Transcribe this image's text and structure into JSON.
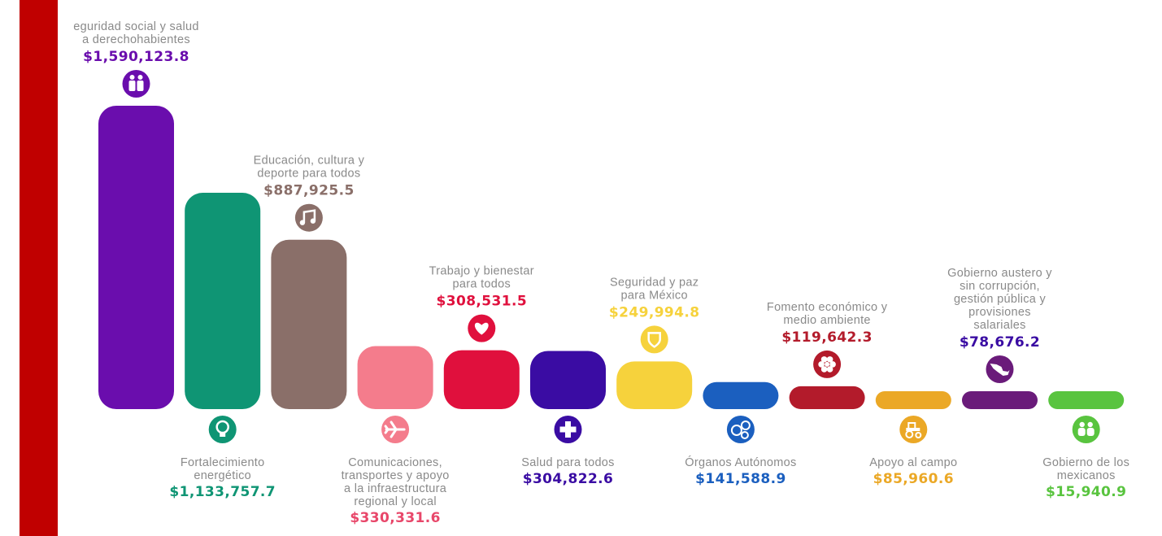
{
  "chart_data": {
    "type": "bar",
    "categories": [
      "Seguridad social y salud a derechohabientes",
      "Fortalecimiento energético",
      "Educación, cultura y deporte para todos",
      "Comunicaciones, transportes y apoyo a la infraestructura regional y local",
      "Trabajo y bienestar para todos",
      "Salud para todos",
      "Seguridad y paz para México",
      "Órganos Autónomos",
      "Fomento económico y medio ambiente",
      "Apoyo al campo",
      "Gobierno austero y sin corrupción, gestión pública y provisiones salariales",
      "Gobierno de los mexicanos"
    ],
    "values": [
      1590123.8,
      1133757.7,
      887925.5,
      330331.6,
      308531.5,
      304822.6,
      249994.8,
      141588.9,
      119642.3,
      85960.6,
      78676.2,
      15940.9
    ],
    "ylim": [
      0,
      1590123.8
    ],
    "grid": false,
    "title": "",
    "xlabel": "",
    "ylabel": ""
  },
  "bars": [
    {
      "label_lines": [
        "eguridad social y salud",
        "a derechohabientes"
      ],
      "value_text": "$1,590,123.8",
      "color": "#6a0dad",
      "icon": "people-icon",
      "position": "top"
    },
    {
      "label_lines": [
        "Fortalecimiento",
        "energético"
      ],
      "value_text": "$1,133,757.7",
      "color": "#0f9574",
      "icon": "lightbulb-icon",
      "position": "bottom"
    },
    {
      "label_lines": [
        "Educación, cultura y",
        "deporte para todos"
      ],
      "value_text": "$887,925.5",
      "color": "#8a6f69",
      "icon": "music-note-icon",
      "position": "top"
    },
    {
      "label_lines": [
        "Comunicaciones,",
        "transportes y apoyo",
        "a la infraestructura",
        "regional y local"
      ],
      "value_text": "$330,331.6",
      "color": "#f47c8c",
      "icon": "airplane-icon",
      "position": "bottom"
    },
    {
      "label_lines": [
        "Trabajo y bienestar",
        "para todos"
      ],
      "value_text": "$308,531.5",
      "color": "#e0103d",
      "icon": "heart-icon",
      "position": "top"
    },
    {
      "label_lines": [
        "Salud para todos"
      ],
      "value_text": "$304,822.6",
      "color": "#3a0ca3",
      "icon": "plus-icon",
      "position": "bottom"
    },
    {
      "label_lines": [
        "Seguridad y paz",
        "para México"
      ],
      "value_text": "$249,994.8",
      "color": "#f6d23c",
      "icon": "shield-icon",
      "position": "top"
    },
    {
      "label_lines": [
        "Órganos Autónomos"
      ],
      "value_text": "$141,588.9",
      "color": "#1b5fbf",
      "icon": "people-circle-icon",
      "position": "bottom"
    },
    {
      "label_lines": [
        "Fomento económico y",
        "medio ambiente"
      ],
      "value_text": "$119,642.3",
      "color": "#b31b2b",
      "icon": "flower-icon",
      "position": "top"
    },
    {
      "label_lines": [
        "Apoyo al campo"
      ],
      "value_text": "$85,960.6",
      "color": "#eba826",
      "icon": "tractor-icon",
      "position": "bottom"
    },
    {
      "label_lines": [
        "Gobierno austero y",
        "sin corrupción,",
        "gestión pública y",
        "provisiones",
        "salariales"
      ],
      "value_text": "$78,676.2",
      "color": "#6a1b7a",
      "icon": "mexico-map-icon",
      "position": "top"
    },
    {
      "label_lines": [
        "Gobierno de los",
        "mexicanos"
      ],
      "value_text": "$15,940.9",
      "color": "#59c43f",
      "icon": "family-icon",
      "position": "bottom"
    }
  ],
  "value_colors": {
    "purple": "#6a0dad",
    "green": "#0f9574",
    "brown": "#8a6f69",
    "pink": "#e8476a",
    "red": "#e0103d",
    "indigo": "#3a0ca3",
    "yellow": "#f6d23c",
    "blue": "#1b5fbf",
    "darkred": "#b31b2b",
    "orange": "#eba826",
    "violet": "#6a1b7a",
    "lime": "#59c43f"
  },
  "accent": "#c00000"
}
